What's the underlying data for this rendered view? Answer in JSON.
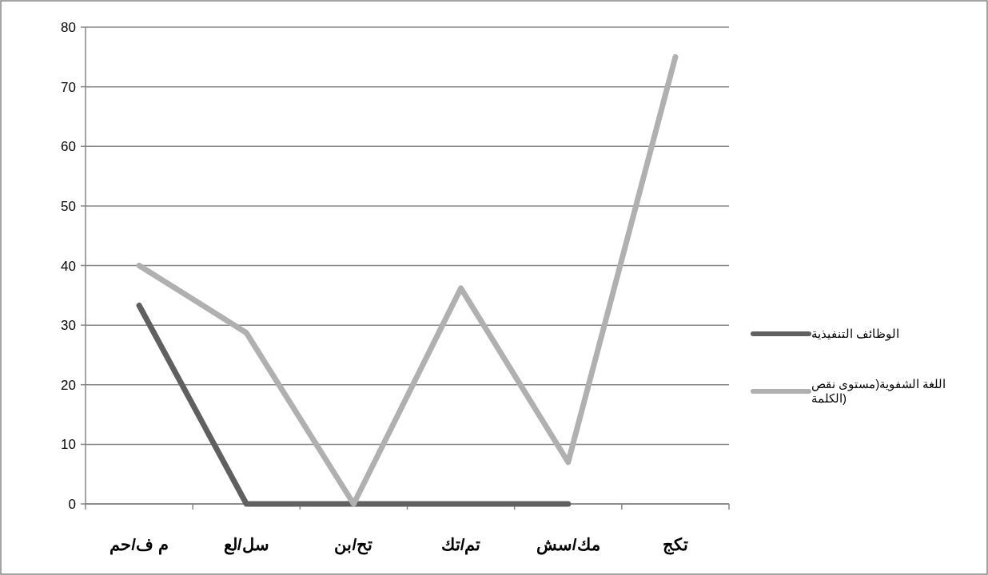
{
  "chart_data": {
    "type": "line",
    "categories": [
      "م ف/حم",
      "سل/لع",
      "تح/بن",
      "تم/تك",
      "مك/سش",
      "تكج"
    ],
    "series": [
      {
        "name": "الوظائف التنفيذية",
        "color": "#606060",
        "values": [
          33.3,
          0,
          0,
          0,
          0,
          null
        ]
      },
      {
        "name": "اللغة الشفوية(مستوى نقص الكلمة)",
        "color": "#b0b0b0",
        "values": [
          40,
          28.7,
          0,
          36.2,
          7,
          75
        ]
      }
    ],
    "ylim": [
      0,
      80
    ],
    "yticks": [
      0,
      10,
      20,
      30,
      40,
      50,
      60,
      70,
      80
    ],
    "grid": "y",
    "legend": "right",
    "marker": "none",
    "line_style": "solid"
  }
}
